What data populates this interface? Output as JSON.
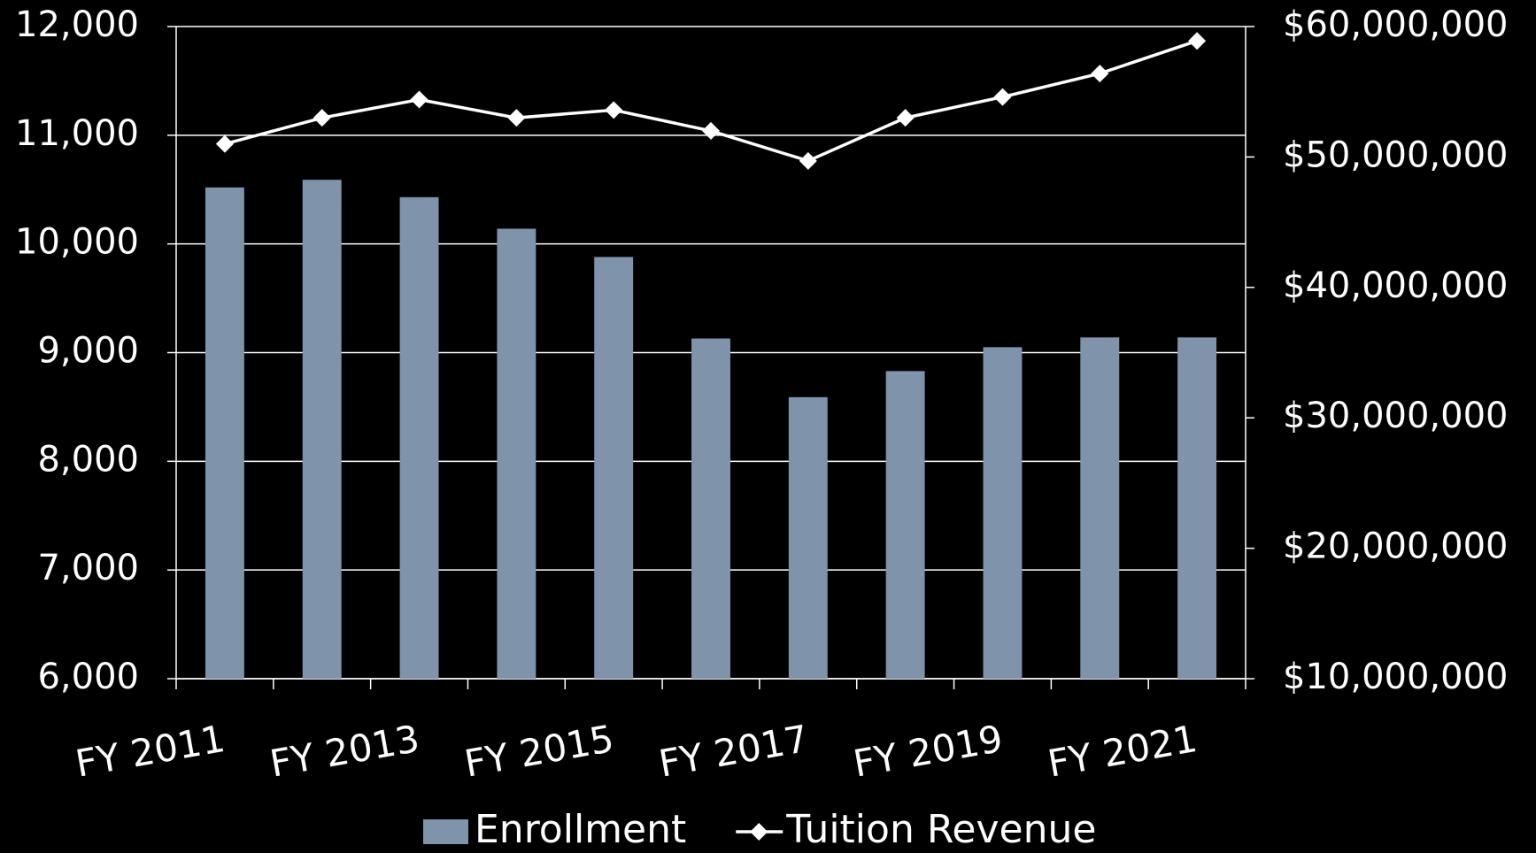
{
  "chart_data": {
    "type": "bar-line",
    "categories": [
      "FY 2011",
      null,
      "FY 2013",
      null,
      "FY 2015",
      null,
      "FY 2017",
      null,
      "FY 2019",
      null,
      "FY 2021"
    ],
    "series": [
      {
        "name": "Enrollment",
        "type": "bar",
        "color": "#7f93aa",
        "axis": "y",
        "values": [
          10520,
          10590,
          10430,
          10140,
          9880,
          9130,
          8590,
          8830,
          9050,
          9140,
          9140
        ]
      },
      {
        "name": "Tuition Revenue",
        "type": "line",
        "color": "#ffffff",
        "axis": "y2",
        "marker": "diamond",
        "values": [
          51000000,
          53000000,
          54400000,
          53000000,
          53600000,
          52000000,
          49700000,
          53000000,
          54600000,
          56400000,
          58900000
        ]
      }
    ],
    "ylim": [
      6000,
      12000
    ],
    "yticks": [
      {
        "value": 6000,
        "label": "6,000"
      },
      {
        "value": 7000,
        "label": "7,000"
      },
      {
        "value": 8000,
        "label": "8,000"
      },
      {
        "value": 9000,
        "label": "9,000"
      },
      {
        "value": 10000,
        "label": "10,000"
      },
      {
        "value": 11000,
        "label": "11,000"
      },
      {
        "value": 12000,
        "label": "12,000"
      }
    ],
    "y2lim": [
      10000000,
      60000000
    ],
    "y2ticks": [
      {
        "value": 10000000,
        "label": "$10,000,000"
      },
      {
        "value": 20000000,
        "label": "$20,000,000"
      },
      {
        "value": 30000000,
        "label": "$30,000,000"
      },
      {
        "value": 40000000,
        "label": "$40,000,000"
      },
      {
        "value": 50000000,
        "label": "$50,000,000"
      },
      {
        "value": 60000000,
        "label": "$60,000,000"
      }
    ],
    "grid": true,
    "legend": "bottom"
  }
}
